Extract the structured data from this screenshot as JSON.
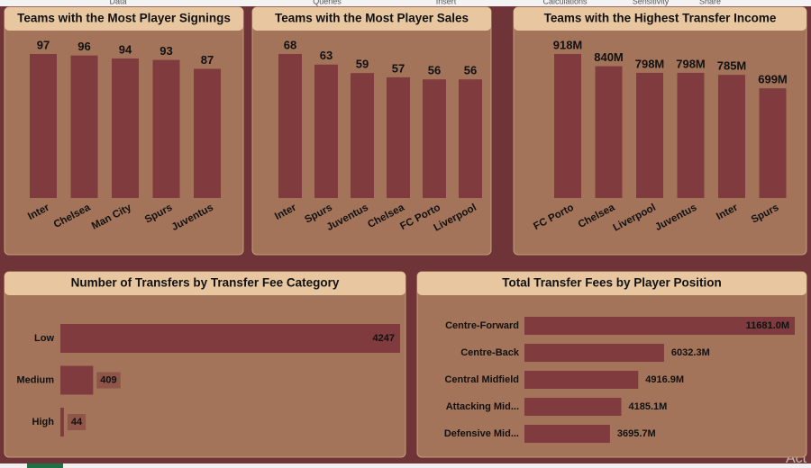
{
  "ribbon": [
    "Data",
    "Queries",
    "Insert",
    "Calculations",
    "Sensitivity",
    "Share"
  ],
  "watermark": "Act",
  "chart_data": [
    {
      "type": "bar",
      "orientation": "vertical",
      "title": "Teams with the Most Player Signings",
      "color": "#7f3b3d",
      "categories": [
        "Inter",
        "Chelsea",
        "Man City",
        "Spurs",
        "Juventus"
      ],
      "values": [
        97,
        96,
        94,
        93,
        87
      ]
    },
    {
      "type": "bar",
      "orientation": "vertical",
      "title": "Teams with the Most Player Sales",
      "color": "#7f3b3d",
      "categories": [
        "Inter",
        "Spurs",
        "Juventus",
        "Chelsea",
        "FC Porto",
        "Liverpool"
      ],
      "values": [
        68,
        63,
        59,
        57,
        56,
        56
      ]
    },
    {
      "type": "bar",
      "orientation": "vertical",
      "title": "Teams with the Highest Transfer Income",
      "color": "#7f3b3d",
      "categories": [
        "FC Porto",
        "Chelsea",
        "Liverpool",
        "Juventus",
        "Inter",
        "Spurs"
      ],
      "values": [
        918,
        840,
        798,
        798,
        785,
        699
      ],
      "value_labels": [
        "918M",
        "840M",
        "798M",
        "798M",
        "785M",
        "699M"
      ]
    },
    {
      "type": "bar",
      "orientation": "horizontal",
      "title": "Number of Transfers by Transfer Fee Category",
      "color": "#7f3b3d",
      "categories": [
        "Low",
        "Medium",
        "High"
      ],
      "values": [
        4247,
        409,
        44
      ]
    },
    {
      "type": "bar",
      "orientation": "horizontal",
      "title": "Total Transfer Fees by Player Position",
      "color": "#7f3b3d",
      "categories": [
        "Centre-Forward",
        "Centre-Back",
        "Central Midfield",
        "Attacking Mid...",
        "Defensive Mid..."
      ],
      "values": [
        11681.0,
        6032.3,
        4916.9,
        4185.1,
        3695.7
      ],
      "value_labels": [
        "11681.0M",
        "6032.3M",
        "4916.9M",
        "4185.1M",
        "3695.7M"
      ]
    }
  ]
}
